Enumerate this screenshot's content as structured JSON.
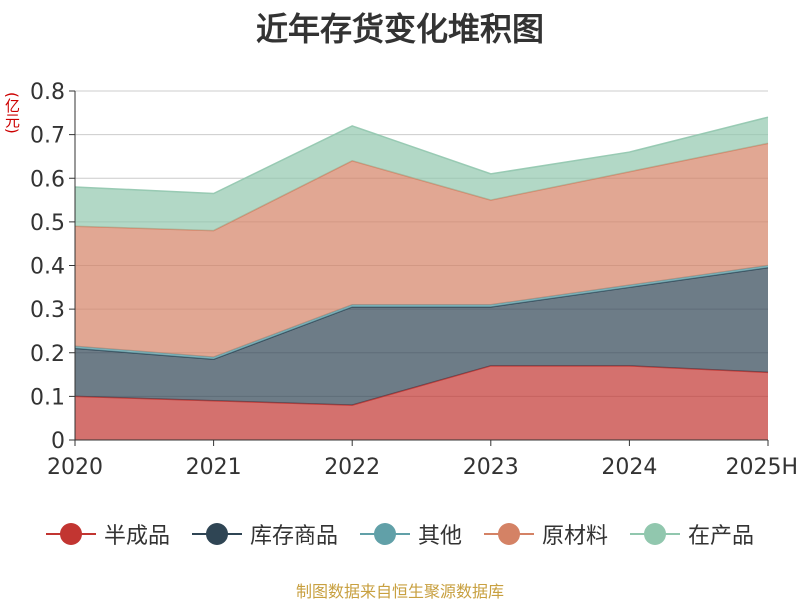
{
  "chart_data": {
    "type": "area",
    "stacked": true,
    "title": "近年存货变化堆积图",
    "unit": "(亿元)",
    "categories": [
      "2020",
      "2021",
      "2022",
      "2023",
      "2024",
      "2025H"
    ],
    "ylim": [
      0,
      0.8
    ],
    "yticks": [
      0,
      0.1,
      0.2,
      0.3,
      0.4,
      0.5,
      0.6,
      0.7,
      0.8
    ],
    "ytick_labels": [
      "0",
      "0.1",
      "0.2",
      "0.3",
      "0.4",
      "0.5",
      "0.6",
      "0.7",
      "0.8"
    ],
    "grid": true,
    "legend_position": "bottom",
    "series": [
      {
        "name": "半成品",
        "color": "#c23531",
        "values": [
          0.1,
          0.09,
          0.08,
          0.17,
          0.17,
          0.155
        ]
      },
      {
        "name": "库存商品",
        "color": "#2f4554",
        "values": [
          0.11,
          0.095,
          0.225,
          0.135,
          0.18,
          0.24
        ]
      },
      {
        "name": "其他",
        "color": "#61a0a8",
        "values": [
          0.005,
          0.005,
          0.005,
          0.005,
          0.005,
          0.005
        ]
      },
      {
        "name": "原材料",
        "color": "#d48265",
        "values": [
          0.275,
          0.29,
          0.33,
          0.24,
          0.26,
          0.28
        ]
      },
      {
        "name": "在产品",
        "color": "#91c7ae",
        "values": [
          0.09,
          0.085,
          0.08,
          0.06,
          0.045,
          0.06
        ]
      }
    ]
  },
  "footer": "制图数据来自恒生聚源数据库"
}
